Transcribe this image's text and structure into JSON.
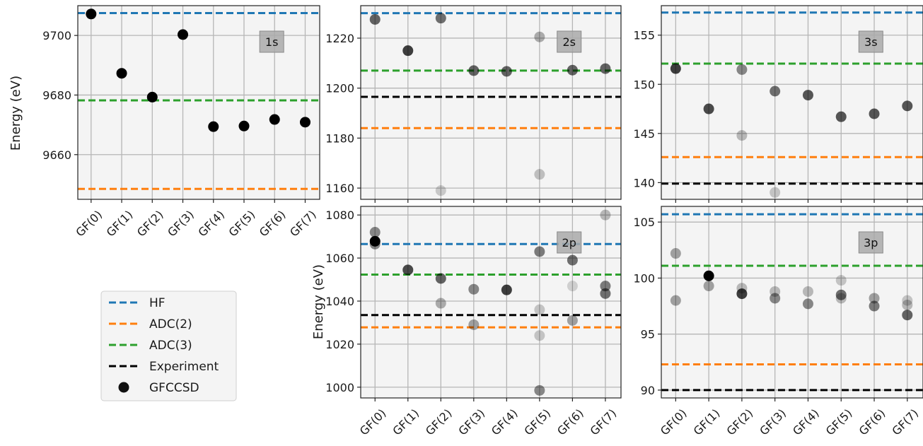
{
  "colors": {
    "HF": "#1f77b4",
    "ADC(2)": "#ff7f0e",
    "ADC(3)": "#2ca02c",
    "Experiment": "#000000",
    "GFCCSD": "#111111"
  },
  "legend": {
    "entries": [
      {
        "label": "HF",
        "key": "HF",
        "style": "dashed"
      },
      {
        "label": "ADC(2)",
        "key": "ADC(2)",
        "style": "dashed"
      },
      {
        "label": "ADC(3)",
        "key": "ADC(3)",
        "style": "dashed"
      },
      {
        "label": "Experiment",
        "key": "Experiment",
        "style": "dashed"
      },
      {
        "label": "GFCCSD",
        "key": "GFCCSD",
        "style": "marker"
      }
    ]
  },
  "chart_data": [
    {
      "type": "scatter",
      "badge": "1s",
      "ylabel": "Energy (eV)",
      "categories": [
        "GF(0)",
        "GF(1)",
        "GF(2)",
        "GF(3)",
        "GF(4)",
        "GF(5)",
        "GF(6)",
        "GF(7)"
      ],
      "ylim": [
        9645,
        9710
      ],
      "yticks": [
        9660,
        9680,
        9700
      ],
      "grid": true,
      "reference_lines": {
        "HF": 9707.5,
        "ADC(2)": 9648.5,
        "ADC(3)": 9678.2
      },
      "points": [
        {
          "x": 0,
          "y": 9707.2,
          "alpha": 1.0
        },
        {
          "x": 1,
          "y": 9687.3,
          "alpha": 1.0
        },
        {
          "x": 2,
          "y": 9679.3,
          "alpha": 1.0
        },
        {
          "x": 3,
          "y": 9700.3,
          "alpha": 1.0
        },
        {
          "x": 4,
          "y": 9669.4,
          "alpha": 1.0
        },
        {
          "x": 5,
          "y": 9669.6,
          "alpha": 1.0
        },
        {
          "x": 6,
          "y": 9671.8,
          "alpha": 1.0
        },
        {
          "x": 7,
          "y": 9670.9,
          "alpha": 1.0
        }
      ]
    },
    {
      "type": "scatter",
      "badge": "2s",
      "ylabel": "",
      "categories": [
        "GF(0)",
        "GF(1)",
        "GF(2)",
        "GF(3)",
        "GF(4)",
        "GF(5)",
        "GF(6)",
        "GF(7)"
      ],
      "ylim": [
        1155.5,
        1233
      ],
      "yticks": [
        1160,
        1180,
        1200,
        1220
      ],
      "grid": true,
      "reference_lines": {
        "HF": 1230.0,
        "ADC(2)": 1184.0,
        "ADC(3)": 1207.0,
        "Experiment": 1196.5
      },
      "points": [
        {
          "x": 0,
          "y": 1227.5,
          "alpha": 0.6
        },
        {
          "x": 1,
          "y": 1215.0,
          "alpha": 0.75
        },
        {
          "x": 2,
          "y": 1228.0,
          "alpha": 0.55
        },
        {
          "x": 2,
          "y": 1159.0,
          "alpha": 0.18
        },
        {
          "x": 3,
          "y": 1207.0,
          "alpha": 0.6
        },
        {
          "x": 4,
          "y": 1206.7,
          "alpha": 0.6
        },
        {
          "x": 5,
          "y": 1220.5,
          "alpha": 0.3
        },
        {
          "x": 5,
          "y": 1165.5,
          "alpha": 0.22
        },
        {
          "x": 6,
          "y": 1207.2,
          "alpha": 0.6
        },
        {
          "x": 7,
          "y": 1207.8,
          "alpha": 0.6
        }
      ]
    },
    {
      "type": "scatter",
      "badge": "3s",
      "ylabel": "",
      "categories": [
        "GF(0)",
        "GF(1)",
        "GF(2)",
        "GF(3)",
        "GF(4)",
        "GF(5)",
        "GF(6)",
        "GF(7)"
      ],
      "ylim": [
        138.3,
        158
      ],
      "yticks": [
        140,
        145,
        150,
        155
      ],
      "grid": true,
      "reference_lines": {
        "HF": 157.3,
        "ADC(2)": 142.6,
        "ADC(3)": 152.1,
        "Experiment": 139.9
      },
      "points": [
        {
          "x": 0,
          "y": 151.6,
          "alpha": 0.75
        },
        {
          "x": 1,
          "y": 147.5,
          "alpha": 0.7
        },
        {
          "x": 2,
          "y": 151.5,
          "alpha": 0.45
        },
        {
          "x": 2,
          "y": 144.8,
          "alpha": 0.25
        },
        {
          "x": 3,
          "y": 149.3,
          "alpha": 0.55
        },
        {
          "x": 3,
          "y": 139.0,
          "alpha": 0.2
        },
        {
          "x": 4,
          "y": 148.9,
          "alpha": 0.65
        },
        {
          "x": 5,
          "y": 146.7,
          "alpha": 0.65
        },
        {
          "x": 6,
          "y": 147.0,
          "alpha": 0.65
        },
        {
          "x": 7,
          "y": 147.8,
          "alpha": 0.65
        }
      ]
    },
    {
      "type": "scatter",
      "badge": "2p",
      "ylabel": "Energy (eV)",
      "categories": [
        "GF(0)",
        "GF(1)",
        "GF(2)",
        "GF(3)",
        "GF(4)",
        "GF(5)",
        "GF(6)",
        "GF(7)"
      ],
      "ylim": [
        995,
        1084
      ],
      "yticks": [
        1000,
        1020,
        1040,
        1060,
        1080
      ],
      "grid": true,
      "reference_lines": {
        "HF": 1066.5,
        "ADC(2)": 1027.8,
        "ADC(3)": 1052.3,
        "Experiment": 1033.5
      },
      "points": [
        {
          "x": 0,
          "y": 1072.0,
          "alpha": 0.45
        },
        {
          "x": 0,
          "y": 1066.5,
          "alpha": 0.45
        },
        {
          "x": 0,
          "y": 1067.8,
          "alpha": 1.0
        },
        {
          "x": 1,
          "y": 1054.5,
          "alpha": 0.7
        },
        {
          "x": 2,
          "y": 1050.5,
          "alpha": 0.6
        },
        {
          "x": 2,
          "y": 1039.0,
          "alpha": 0.3
        },
        {
          "x": 3,
          "y": 1045.5,
          "alpha": 0.45
        },
        {
          "x": 3,
          "y": 1029.0,
          "alpha": 0.35
        },
        {
          "x": 4,
          "y": 1045.2,
          "alpha": 0.75
        },
        {
          "x": 5,
          "y": 1063.0,
          "alpha": 0.5
        },
        {
          "x": 5,
          "y": 1036.0,
          "alpha": 0.2
        },
        {
          "x": 5,
          "y": 1024.0,
          "alpha": 0.2
        },
        {
          "x": 5,
          "y": 998.5,
          "alpha": 0.45
        },
        {
          "x": 6,
          "y": 1059.0,
          "alpha": 0.55
        },
        {
          "x": 6,
          "y": 1047.0,
          "alpha": 0.15
        },
        {
          "x": 6,
          "y": 1031.0,
          "alpha": 0.35
        },
        {
          "x": 7,
          "y": 1080.0,
          "alpha": 0.25
        },
        {
          "x": 7,
          "y": 1047.0,
          "alpha": 0.5
        },
        {
          "x": 7,
          "y": 1043.5,
          "alpha": 0.55
        }
      ]
    },
    {
      "type": "scatter",
      "badge": "3p",
      "ylabel": "",
      "categories": [
        "GF(0)",
        "GF(1)",
        "GF(2)",
        "GF(3)",
        "GF(4)",
        "GF(5)",
        "GF(6)",
        "GF(7)"
      ],
      "ylim": [
        89.3,
        106.4
      ],
      "yticks": [
        90,
        95,
        100,
        105
      ],
      "grid": true,
      "reference_lines": {
        "HF": 105.7,
        "ADC(2)": 92.3,
        "ADC(3)": 101.1,
        "Experiment": 90.0
      },
      "points": [
        {
          "x": 0,
          "y": 102.2,
          "alpha": 0.35
        },
        {
          "x": 0,
          "y": 98.0,
          "alpha": 0.35
        },
        {
          "x": 1,
          "y": 100.2,
          "alpha": 1.0
        },
        {
          "x": 1,
          "y": 99.3,
          "alpha": 0.35
        },
        {
          "x": 2,
          "y": 99.1,
          "alpha": 0.25
        },
        {
          "x": 2,
          "y": 98.6,
          "alpha": 0.75
        },
        {
          "x": 3,
          "y": 98.8,
          "alpha": 0.25
        },
        {
          "x": 3,
          "y": 98.2,
          "alpha": 0.45
        },
        {
          "x": 4,
          "y": 98.8,
          "alpha": 0.25
        },
        {
          "x": 4,
          "y": 97.7,
          "alpha": 0.45
        },
        {
          "x": 5,
          "y": 99.8,
          "alpha": 0.2
        },
        {
          "x": 5,
          "y": 98.5,
          "alpha": 0.55
        },
        {
          "x": 5,
          "y": 98.2,
          "alpha": 0.25
        },
        {
          "x": 6,
          "y": 98.2,
          "alpha": 0.35
        },
        {
          "x": 6,
          "y": 97.5,
          "alpha": 0.5
        },
        {
          "x": 7,
          "y": 98.0,
          "alpha": 0.2
        },
        {
          "x": 7,
          "y": 97.6,
          "alpha": 0.25
        },
        {
          "x": 7,
          "y": 96.7,
          "alpha": 0.6
        }
      ]
    }
  ]
}
